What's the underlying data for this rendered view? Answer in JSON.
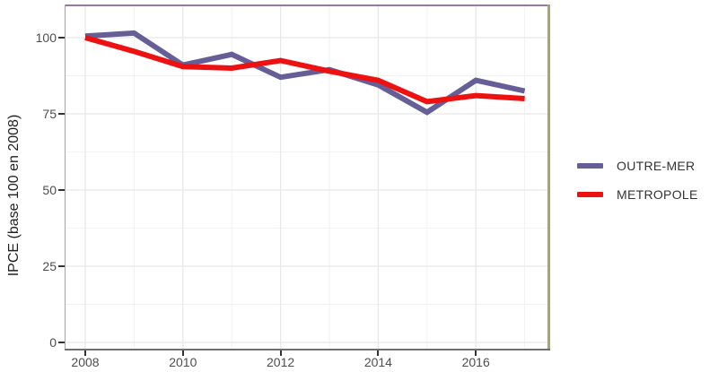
{
  "figure": {
    "y_axis_title": "IPCE (base 100 en 2008)"
  },
  "legend": {
    "position": "right",
    "items": [
      {
        "label": "OUTRE-MER",
        "color": "#655E97"
      },
      {
        "label": "METROPOLE",
        "color": "#EE1111"
      }
    ]
  },
  "colors": {
    "series_outre_mer": "#655E97",
    "series_metropole": "#EE1111",
    "grid_major": "#E8E8E8",
    "grid_minor": "#F2F2F2",
    "axis_bottom": "#6F6F6F",
    "axis_left": "#A3A3A3",
    "frame_top": "#9679A4",
    "frame_right": "#A2A383",
    "tick_mark": "#333333",
    "tick_text": "#4D4D4D"
  },
  "chart_data": {
    "type": "line",
    "title": "",
    "xlabel": "",
    "ylabel": "IPCE (base 100 en 2008)",
    "x": [
      2008,
      2009,
      2010,
      2011,
      2012,
      2013,
      2014,
      2015,
      2016,
      2017
    ],
    "series": [
      {
        "name": "OUTRE-MER",
        "color": "#655E97",
        "values": [
          100.5,
          101.5,
          91.0,
          94.5,
          87.0,
          89.5,
          84.5,
          75.5,
          86.0,
          82.5
        ]
      },
      {
        "name": "METROPOLE",
        "color": "#EE1111",
        "values": [
          100.0,
          95.5,
          90.5,
          90.0,
          92.5,
          89.0,
          86.0,
          79.0,
          81.0,
          80.0
        ]
      }
    ],
    "x_ticks": [
      2008,
      2010,
      2012,
      2014,
      2016
    ],
    "x_minor_ticks": [
      2009,
      2011,
      2013,
      2015,
      2017
    ],
    "y_ticks": [
      0,
      25,
      50,
      75,
      100
    ],
    "y_minor_ticks": [
      12.5,
      37.5,
      62.5,
      87.5
    ],
    "xlim": [
      2007.6,
      2017.5
    ],
    "ylim": [
      -2,
      111
    ],
    "grid": "major+minor",
    "legend_position": "right"
  }
}
